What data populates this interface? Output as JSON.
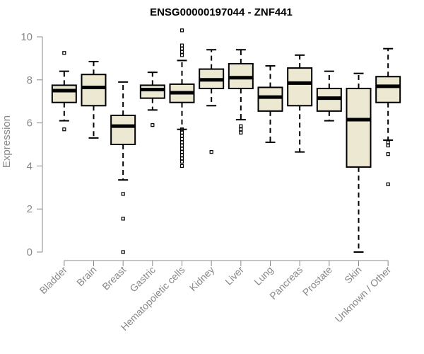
{
  "chart_data": {
    "type": "box",
    "title": "ENSG00000197044 - ZNF441",
    "xlabel": "",
    "ylabel": "Expression",
    "ylim": [
      0,
      10
    ],
    "yticks": [
      "0",
      "2",
      "4",
      "6",
      "8",
      "10"
    ],
    "grid": false,
    "box_fill": "#ede8d2",
    "categories": [
      "Bladder",
      "Brain",
      "Breast",
      "Gastric",
      "Hematopoietic cells",
      "Kidney",
      "Liver",
      "Lung",
      "Pancreas",
      "Prostate",
      "Skin",
      "Unknown / Other"
    ],
    "boxes": [
      {
        "min": 6.1,
        "q1": 6.95,
        "median": 7.5,
        "q3": 7.75,
        "max": 8.4,
        "outliers": [
          9.25,
          5.7
        ]
      },
      {
        "min": 5.3,
        "q1": 6.8,
        "median": 7.65,
        "q3": 8.25,
        "max": 8.85,
        "outliers": []
      },
      {
        "min": 3.35,
        "q1": 5.0,
        "median": 5.85,
        "q3": 6.35,
        "max": 7.9,
        "outliers": [
          2.7,
          1.55,
          0.0
        ]
      },
      {
        "min": 6.6,
        "q1": 7.15,
        "median": 7.55,
        "q3": 7.75,
        "max": 8.35,
        "outliers": [
          5.9
        ]
      },
      {
        "min": 5.7,
        "q1": 6.95,
        "median": 7.4,
        "q3": 7.8,
        "max": 8.9,
        "outliers": [
          10.3,
          9.6,
          9.45,
          9.3,
          9.15,
          5.7,
          5.55,
          5.4,
          5.25,
          5.1,
          4.95,
          4.8,
          4.65,
          4.5,
          4.35,
          4.2,
          4.0
        ]
      },
      {
        "min": 6.8,
        "q1": 7.6,
        "median": 8.0,
        "q3": 8.5,
        "max": 9.4,
        "outliers": [
          4.65
        ]
      },
      {
        "min": 6.15,
        "q1": 7.6,
        "median": 8.1,
        "q3": 8.75,
        "max": 9.4,
        "outliers": [
          5.85,
          5.7,
          5.55
        ]
      },
      {
        "min": 5.1,
        "q1": 6.55,
        "median": 7.2,
        "q3": 7.65,
        "max": 8.65,
        "outliers": []
      },
      {
        "min": 4.65,
        "q1": 6.8,
        "median": 7.85,
        "q3": 8.55,
        "max": 9.15,
        "outliers": []
      },
      {
        "min": 6.1,
        "q1": 6.55,
        "median": 7.15,
        "q3": 7.6,
        "max": 8.4,
        "outliers": []
      },
      {
        "min": 0.0,
        "q1": 3.95,
        "median": 6.15,
        "q3": 7.6,
        "max": 8.3,
        "outliers": []
      },
      {
        "min": 5.2,
        "q1": 6.95,
        "median": 7.7,
        "q3": 8.15,
        "max": 9.45,
        "outliers": [
          5.1,
          4.95,
          4.55,
          3.15
        ]
      }
    ]
  }
}
